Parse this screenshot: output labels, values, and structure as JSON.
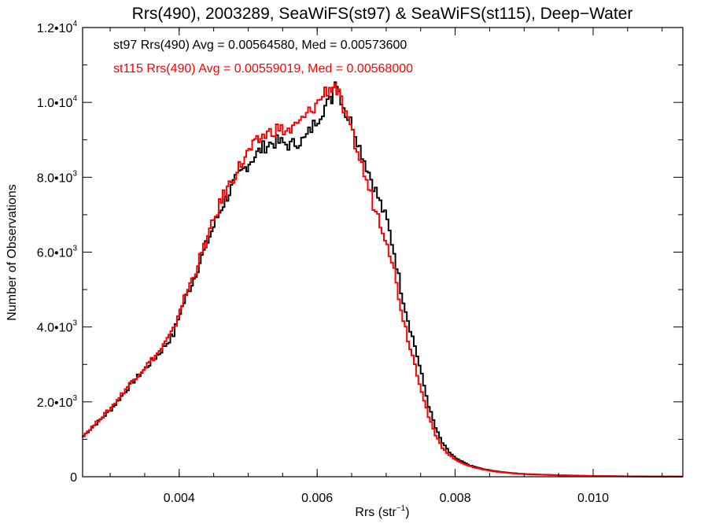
{
  "chart_data": {
    "type": "line",
    "title": "Rrs(490), 2003289, SeaWiFS(st97) & SeaWiFS(st115), Deep−Water",
    "xlabel": "Rrs (str",
    "xlabel_sup": "−1",
    "xlabel_close": ")",
    "ylabel": "Number of Observations",
    "xlim": [
      0.0026,
      0.0113
    ],
    "ylim": [
      0,
      12000
    ],
    "grid": false,
    "x_ticks": [
      {
        "value": 0.004,
        "label": "0.004"
      },
      {
        "value": 0.006,
        "label": "0.006"
      },
      {
        "value": 0.008,
        "label": "0.008"
      },
      {
        "value": 0.01,
        "label": "0.010"
      }
    ],
    "y_ticks": [
      {
        "value": 0,
        "mant": "0",
        "exp": ""
      },
      {
        "value": 2000,
        "mant": "2.0•10",
        "exp": "3"
      },
      {
        "value": 4000,
        "mant": "4.0•10",
        "exp": "3"
      },
      {
        "value": 6000,
        "mant": "6.0•10",
        "exp": "3"
      },
      {
        "value": 8000,
        "mant": "8.0•10",
        "exp": "3"
      },
      {
        "value": 10000,
        "mant": "1.0•10",
        "exp": "4"
      },
      {
        "value": 12000,
        "mant": "1.2•10",
        "exp": "4"
      }
    ],
    "annotations": [
      {
        "text": "st97 Rrs(490) Avg = 0.00564580, Med = 0.00573600",
        "color": "#000000"
      },
      {
        "text": "st115 Rrs(490) Avg = 0.00559019, Med = 0.00568000",
        "color": "#ff0000"
      }
    ],
    "series": [
      {
        "color": "#000000",
        "x": [
          0.0026,
          0.003,
          0.0033,
          0.0035,
          0.0037,
          0.0039,
          0.004,
          0.0042,
          0.0044,
          0.0046,
          0.0048,
          0.005,
          0.0052,
          0.0053,
          0.0054,
          0.0055,
          0.0056,
          0.0057,
          0.0058,
          0.0059,
          0.006,
          0.0061,
          0.0062,
          0.00625,
          0.0063,
          0.0064,
          0.0065,
          0.0066,
          0.0067,
          0.0068,
          0.0069,
          0.007,
          0.0071,
          0.0072,
          0.0073,
          0.0074,
          0.0075,
          0.0076,
          0.0077,
          0.0078,
          0.0079,
          0.008,
          0.0082,
          0.0084,
          0.0086,
          0.0088,
          0.009,
          0.0095,
          0.01,
          0.0105,
          0.011,
          0.0113
        ],
        "values": [
          1100,
          1800,
          2500,
          2900,
          3300,
          3800,
          4400,
          5300,
          6300,
          7200,
          7900,
          8400,
          8800,
          8900,
          8950,
          8900,
          8850,
          8950,
          9000,
          9300,
          9600,
          9900,
          10100,
          10700,
          10300,
          9700,
          9400,
          8800,
          8300,
          7800,
          7300,
          6800,
          6000,
          5000,
          4200,
          3500,
          2700,
          1900,
          1300,
          900,
          650,
          480,
          300,
          200,
          140,
          100,
          70,
          40,
          20,
          10,
          5,
          3
        ]
      },
      {
        "color": "#ff0000",
        "x": [
          0.0026,
          0.003,
          0.0033,
          0.0035,
          0.0037,
          0.0039,
          0.004,
          0.0042,
          0.0044,
          0.0046,
          0.0048,
          0.005,
          0.0052,
          0.0053,
          0.0054,
          0.0055,
          0.0056,
          0.0057,
          0.0058,
          0.0059,
          0.006,
          0.0061,
          0.0062,
          0.00625,
          0.0063,
          0.0064,
          0.0065,
          0.0066,
          0.0067,
          0.0068,
          0.0069,
          0.007,
          0.0071,
          0.0072,
          0.0073,
          0.0074,
          0.0075,
          0.0076,
          0.0077,
          0.0078,
          0.0079,
          0.008,
          0.0082,
          0.0084,
          0.0086,
          0.0088,
          0.009,
          0.0095,
          0.01,
          0.0105,
          0.011,
          0.0113
        ],
        "values": [
          1100,
          1850,
          2550,
          2950,
          3350,
          3900,
          4500,
          5400,
          6400,
          7400,
          8100,
          8700,
          9100,
          9200,
          9300,
          9250,
          9250,
          9400,
          9600,
          9800,
          10000,
          10300,
          10400,
          10450,
          10200,
          9600,
          9100,
          8500,
          7900,
          7300,
          6800,
          6300,
          5500,
          4500,
          3700,
          3000,
          2300,
          1600,
          1100,
          780,
          580,
          440,
          280,
          190,
          130,
          95,
          65,
          38,
          18,
          9,
          4,
          2
        ]
      }
    ]
  }
}
